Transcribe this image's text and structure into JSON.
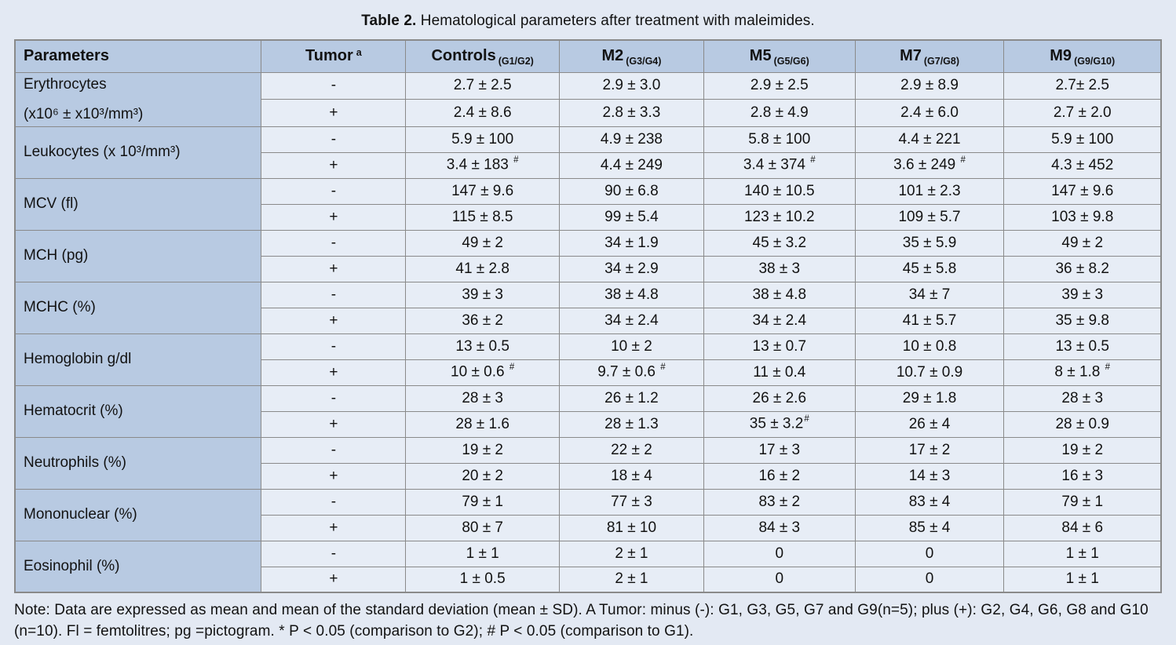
{
  "caption": {
    "label": "Table 2.",
    "text": " Hematological parameters after treatment with maleimides."
  },
  "colors": {
    "page_bg": "#e3e9f3",
    "header_bg": "#b8cae2",
    "cell_bg": "#e7edf6",
    "border": "#8a8a8a",
    "text": "#121212"
  },
  "table": {
    "headers": [
      {
        "main": "Parameters",
        "sub": "",
        "sup": ""
      },
      {
        "main": "Tumor",
        "sub": "",
        "sup": "a"
      },
      {
        "main": "Controls",
        "sub": "(G1/G2)",
        "sup": ""
      },
      {
        "main": "M2",
        "sub": "(G3/G4)",
        "sup": ""
      },
      {
        "main": "M5",
        "sub": "(G5/G6)",
        "sup": ""
      },
      {
        "main": "M7",
        "sub": "(G7/G8)",
        "sup": ""
      },
      {
        "main": "M9",
        "sub": "(G9/G10)",
        "sup": ""
      }
    ],
    "groups": [
      {
        "parameter_lines": [
          "Erythrocytes",
          "(x10⁶ ± x10³/mm³)"
        ],
        "rows": [
          {
            "tumor": "-",
            "values": [
              {
                "v": "2.7 ± 2.5"
              },
              {
                "v": "2.9 ± 3.0"
              },
              {
                "v": "2.9 ± 2.5"
              },
              {
                "v": "2.9 ± 8.9"
              },
              {
                "v": "2.7± 2.5"
              }
            ]
          },
          {
            "tumor": "+",
            "values": [
              {
                "v": "2.4 ± 8.6"
              },
              {
                "v": "2.8 ± 3.3"
              },
              {
                "v": "2.8 ± 4.9"
              },
              {
                "v": "2.4 ± 6.0"
              },
              {
                "v": "2.7 ± 2.0"
              }
            ]
          }
        ]
      },
      {
        "parameter_lines": [
          "Leukocytes (x 10³/mm³)"
        ],
        "rows": [
          {
            "tumor": "-",
            "values": [
              {
                "v": "5.9 ± 100"
              },
              {
                "v": "4.9 ± 238"
              },
              {
                "v": "5.8 ± 100"
              },
              {
                "v": "4.4 ± 221"
              },
              {
                "v": "5.9 ± 100"
              }
            ]
          },
          {
            "tumor": "+",
            "values": [
              {
                "v": "3.4 ± 183 ",
                "m": "#"
              },
              {
                "v": "4.4 ± 249"
              },
              {
                "v": "3.4 ± 374 ",
                "m": "#"
              },
              {
                "v": "3.6 ± 249 ",
                "m": "#"
              },
              {
                "v": "4.3 ± 452"
              }
            ]
          }
        ]
      },
      {
        "parameter_lines": [
          "MCV (fl)"
        ],
        "rows": [
          {
            "tumor": "-",
            "values": [
              {
                "v": "147 ± 9.6"
              },
              {
                "v": "90 ± 6.8"
              },
              {
                "v": "140 ± 10.5"
              },
              {
                "v": "101 ± 2.3"
              },
              {
                "v": "147 ± 9.6"
              }
            ]
          },
          {
            "tumor": "+",
            "values": [
              {
                "v": "115 ± 8.5"
              },
              {
                "v": "99 ± 5.4"
              },
              {
                "v": "123 ± 10.2"
              },
              {
                "v": "109 ± 5.7"
              },
              {
                "v": "103 ± 9.8"
              }
            ]
          }
        ]
      },
      {
        "parameter_lines": [
          "MCH (pg)"
        ],
        "rows": [
          {
            "tumor": "-",
            "values": [
              {
                "v": "49 ± 2"
              },
              {
                "v": "34 ± 1.9"
              },
              {
                "v": "45 ± 3.2"
              },
              {
                "v": "35 ± 5.9"
              },
              {
                "v": "49 ± 2"
              }
            ]
          },
          {
            "tumor": "+",
            "values": [
              {
                "v": "41 ± 2.8"
              },
              {
                "v": "34 ± 2.9"
              },
              {
                "v": "38 ± 3"
              },
              {
                "v": "45 ± 5.8"
              },
              {
                "v": "36 ± 8.2"
              }
            ]
          }
        ]
      },
      {
        "parameter_lines": [
          "MCHC (%)"
        ],
        "rows": [
          {
            "tumor": "-",
            "values": [
              {
                "v": "39 ± 3"
              },
              {
                "v": "38 ± 4.8"
              },
              {
                "v": "38 ± 4.8"
              },
              {
                "v": "34 ± 7"
              },
              {
                "v": "39 ± 3"
              }
            ]
          },
          {
            "tumor": "+",
            "values": [
              {
                "v": "36 ± 2"
              },
              {
                "v": "34 ± 2.4"
              },
              {
                "v": "34 ± 2.4"
              },
              {
                "v": "41 ± 5.7"
              },
              {
                "v": "35 ± 9.8"
              }
            ]
          }
        ]
      },
      {
        "parameter_lines": [
          "Hemoglobin g/dl"
        ],
        "rows": [
          {
            "tumor": "-",
            "values": [
              {
                "v": "13 ± 0.5"
              },
              {
                "v": "10 ± 2"
              },
              {
                "v": "13 ± 0.7"
              },
              {
                "v": "10 ± 0.8"
              },
              {
                "v": "13 ± 0.5"
              }
            ]
          },
          {
            "tumor": "+",
            "values": [
              {
                "v": "10 ± 0.6 ",
                "m": "#"
              },
              {
                "v": "9.7 ± 0.6 ",
                "m": "#"
              },
              {
                "v": "11 ± 0.4"
              },
              {
                "v": "10.7 ± 0.9"
              },
              {
                "v": "8 ± 1.8 ",
                "m": "#"
              }
            ]
          }
        ]
      },
      {
        "parameter_lines": [
          "Hematocrit (%)"
        ],
        "rows": [
          {
            "tumor": "-",
            "values": [
              {
                "v": "28 ± 3"
              },
              {
                "v": "26 ± 1.2"
              },
              {
                "v": "26 ± 2.6"
              },
              {
                "v": "29 ± 1.8"
              },
              {
                "v": "28 ± 3"
              }
            ]
          },
          {
            "tumor": "+",
            "values": [
              {
                "v": "28 ± 1.6"
              },
              {
                "v": "28 ± 1.3"
              },
              {
                "v": "35 ± 3.2",
                "m": "#"
              },
              {
                "v": "26 ± 4"
              },
              {
                "v": "28 ± 0.9"
              }
            ]
          }
        ]
      },
      {
        "parameter_lines": [
          "Neutrophils (%)"
        ],
        "rows": [
          {
            "tumor": "-",
            "values": [
              {
                "v": "19 ± 2"
              },
              {
                "v": "22 ± 2"
              },
              {
                "v": "17 ± 3"
              },
              {
                "v": "17 ± 2"
              },
              {
                "v": "19 ± 2"
              }
            ]
          },
          {
            "tumor": "+",
            "values": [
              {
                "v": "20 ± 2"
              },
              {
                "v": "18 ± 4"
              },
              {
                "v": "16 ± 2"
              },
              {
                "v": "14 ± 3"
              },
              {
                "v": "16 ± 3"
              }
            ]
          }
        ]
      },
      {
        "parameter_lines": [
          "Mononuclear (%)"
        ],
        "rows": [
          {
            "tumor": "-",
            "values": [
              {
                "v": "79 ± 1"
              },
              {
                "v": "77 ± 3"
              },
              {
                "v": "83 ± 2"
              },
              {
                "v": "83 ± 4"
              },
              {
                "v": "79 ± 1"
              }
            ]
          },
          {
            "tumor": "+",
            "values": [
              {
                "v": "80 ± 7"
              },
              {
                "v": "81 ± 10"
              },
              {
                "v": "84 ± 3"
              },
              {
                "v": "85 ± 4"
              },
              {
                "v": "84 ± 6"
              }
            ]
          }
        ]
      },
      {
        "parameter_lines": [
          "Eosinophil (%)"
        ],
        "rows": [
          {
            "tumor": "-",
            "values": [
              {
                "v": "1 ± 1"
              },
              {
                "v": "2 ± 1"
              },
              {
                "v": "0"
              },
              {
                "v": "0"
              },
              {
                "v": "1 ± 1"
              }
            ]
          },
          {
            "tumor": "+",
            "values": [
              {
                "v": "1 ± 0.5"
              },
              {
                "v": "2 ± 1"
              },
              {
                "v": "0"
              },
              {
                "v": "0"
              },
              {
                "v": "1 ± 1"
              }
            ]
          }
        ]
      }
    ]
  },
  "note": "Note: Data are expressed as mean and mean of the standard deviation (mean ± SD). A Tumor: minus (-): G1, G3, G5, G7 and G9(n=5); plus (+): G2, G4, G6, G8 and G10 (n=10). Fl = femtolitres; pg =pictogram. * P < 0.05 (comparison to G2); # P < 0.05 (comparison to G1)."
}
